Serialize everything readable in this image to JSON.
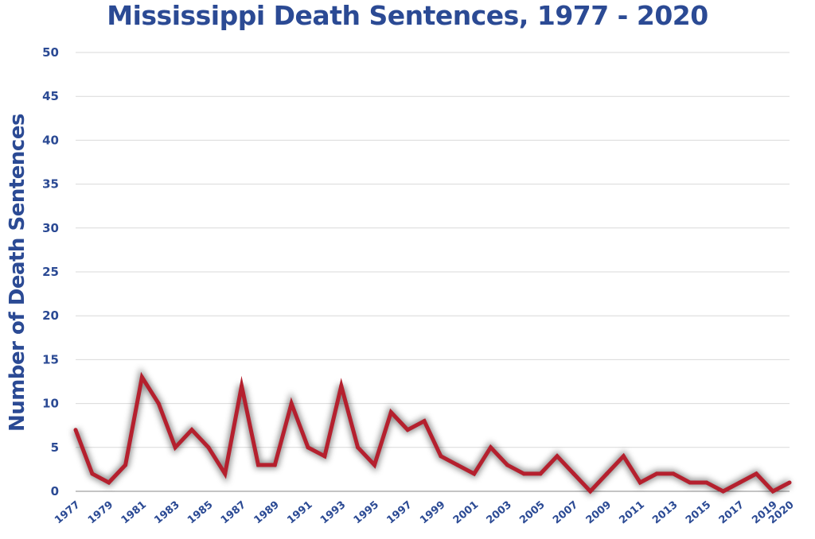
{
  "chart_data": {
    "type": "line",
    "title": "Mississippi Death Sentences, 1977 - 2020",
    "xlabel": "",
    "ylabel": "Number of Death Sentences",
    "ylim": [
      0,
      50
    ],
    "yticks": [
      0,
      5,
      10,
      15,
      20,
      25,
      30,
      35,
      40,
      45,
      50
    ],
    "xticks": [
      "1977",
      "1979",
      "1981",
      "1983",
      "1985",
      "1987",
      "1989",
      "1991",
      "1993",
      "1995",
      "1997",
      "1999",
      "2001",
      "2003",
      "2005",
      "2007",
      "2009",
      "2011",
      "2013",
      "2015",
      "2017",
      "2019",
      "2020"
    ],
    "grid": true,
    "x": [
      1977,
      1978,
      1979,
      1980,
      1981,
      1982,
      1983,
      1984,
      1985,
      1986,
      1987,
      1988,
      1989,
      1990,
      1991,
      1992,
      1993,
      1994,
      1995,
      1996,
      1997,
      1998,
      1999,
      2000,
      2001,
      2002,
      2003,
      2004,
      2005,
      2006,
      2007,
      2008,
      2009,
      2010,
      2011,
      2012,
      2013,
      2014,
      2015,
      2016,
      2017,
      2018,
      2019,
      2020
    ],
    "series": [
      {
        "values": [
          7,
          2,
          1,
          3,
          13,
          10,
          5,
          7,
          5,
          2,
          12,
          3,
          3,
          10,
          5,
          4,
          12,
          5,
          3,
          9,
          7,
          8,
          4,
          3,
          2,
          5,
          3,
          2,
          2,
          4,
          2,
          0,
          2,
          4,
          1,
          2,
          2,
          1,
          1,
          0,
          1,
          2,
          0,
          1
        ]
      }
    ],
    "colors": {
      "line": "#b5202e",
      "text": "#2b4a94",
      "grid": "#d9d9d9"
    }
  }
}
